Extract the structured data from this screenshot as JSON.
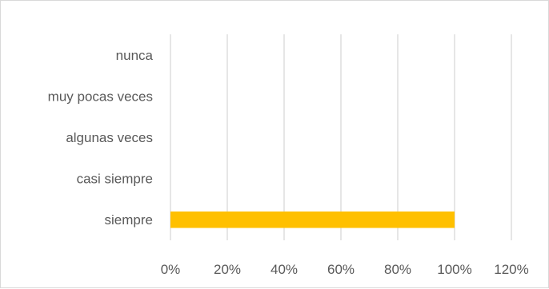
{
  "chart_data": {
    "type": "bar",
    "orientation": "horizontal",
    "categories": [
      "nunca",
      "muy pocas veces",
      "algunas veces",
      "casi siempre",
      "siempre"
    ],
    "values": [
      0,
      0,
      0,
      0,
      100
    ],
    "xlim": [
      0,
      120
    ],
    "x_ticks": [
      0,
      20,
      40,
      60,
      80,
      100,
      120
    ],
    "x_tick_labels": [
      "0%",
      "20%",
      "40%",
      "60%",
      "80%",
      "100%",
      "120%"
    ],
    "grid": "vertical",
    "legend": "none",
    "bar_color": "#FFC000",
    "title": "",
    "xlabel": "",
    "ylabel": ""
  }
}
